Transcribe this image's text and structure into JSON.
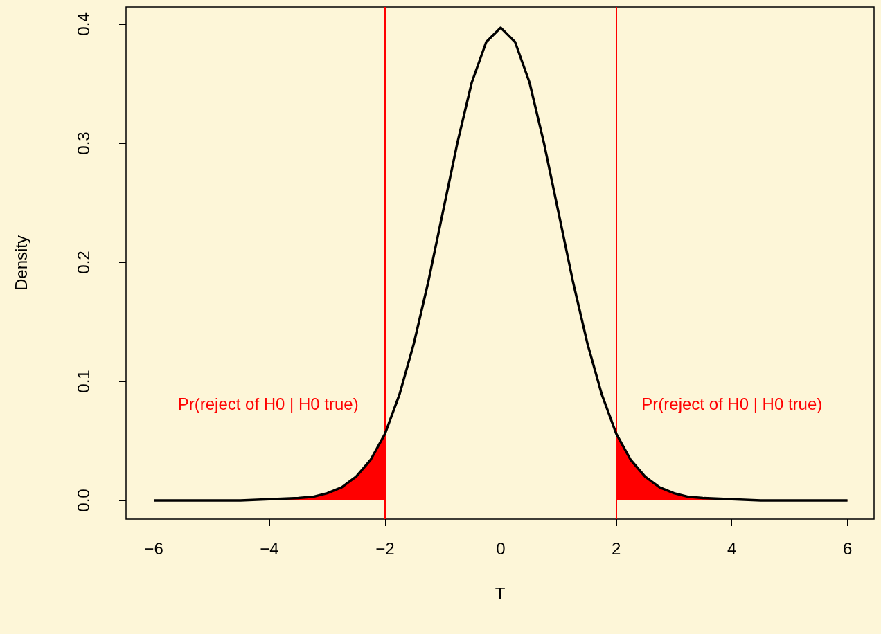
{
  "chart_data": {
    "type": "line",
    "xlabel": "T",
    "ylabel": "Density",
    "xlim": [
      -6.48,
      6.46
    ],
    "ylim": [
      -0.0157,
      0.4145
    ],
    "xticks": [
      {
        "value": -6,
        "label": "−6"
      },
      {
        "value": -4,
        "label": "−4"
      },
      {
        "value": -2,
        "label": "−2"
      },
      0,
      2,
      4,
      6
    ],
    "yticks": [
      {
        "value": 0,
        "label": "0.0"
      },
      0.1,
      0.2,
      0.3,
      0.4
    ],
    "marker": "none",
    "series": [
      {
        "type": "area",
        "color": "#ff0000",
        "x": [
          -6,
          -5,
          -4.5,
          -4,
          -3.5,
          -3.25,
          -3,
          -2.75,
          -2.5,
          -2.25,
          -2
        ],
        "values": [
          0,
          0,
          0,
          0.001,
          0.002,
          0.003,
          0.006,
          0.011,
          0.02,
          0.034,
          0.056
        ]
      },
      {
        "type": "area",
        "color": "#ff0000",
        "x": [
          2,
          2.25,
          2.5,
          2.75,
          3,
          3.25,
          3.5,
          4,
          4.5,
          5,
          6
        ],
        "values": [
          0.056,
          0.034,
          0.02,
          0.011,
          0.006,
          0.003,
          0.002,
          0.001,
          0,
          0,
          0
        ]
      },
      {
        "color": "#000000",
        "x": [
          -6,
          -5,
          -4.5,
          -4,
          -3.5,
          -3.25,
          -3,
          -2.75,
          -2.5,
          -2.25,
          -2,
          -1.75,
          -1.5,
          -1.25,
          -1,
          -0.75,
          -0.5,
          -0.25,
          0,
          0.25,
          0.5,
          0.75,
          1,
          1.25,
          1.5,
          1.75,
          2,
          2.25,
          2.5,
          2.75,
          3,
          3.25,
          3.5,
          4,
          4.5,
          5,
          6
        ],
        "values": [
          0,
          0,
          0,
          0.001,
          0.002,
          0.003,
          0.006,
          0.011,
          0.02,
          0.034,
          0.056,
          0.089,
          0.132,
          0.184,
          0.242,
          0.3,
          0.351,
          0.385,
          0.397,
          0.385,
          0.351,
          0.3,
          0.242,
          0.184,
          0.132,
          0.089,
          0.056,
          0.034,
          0.02,
          0.011,
          0.006,
          0.003,
          0.002,
          0.001,
          0,
          0,
          0
        ]
      }
    ],
    "ref_lines": [
      {
        "axis": "x",
        "value": -2,
        "color": "#ff0000"
      },
      {
        "axis": "x",
        "value": 2,
        "color": "#ff0000"
      }
    ],
    "annotations": [
      "Pr(reject of H0 | H0 true)",
      "Pr(reject of H0 | H0 true)"
    ]
  }
}
